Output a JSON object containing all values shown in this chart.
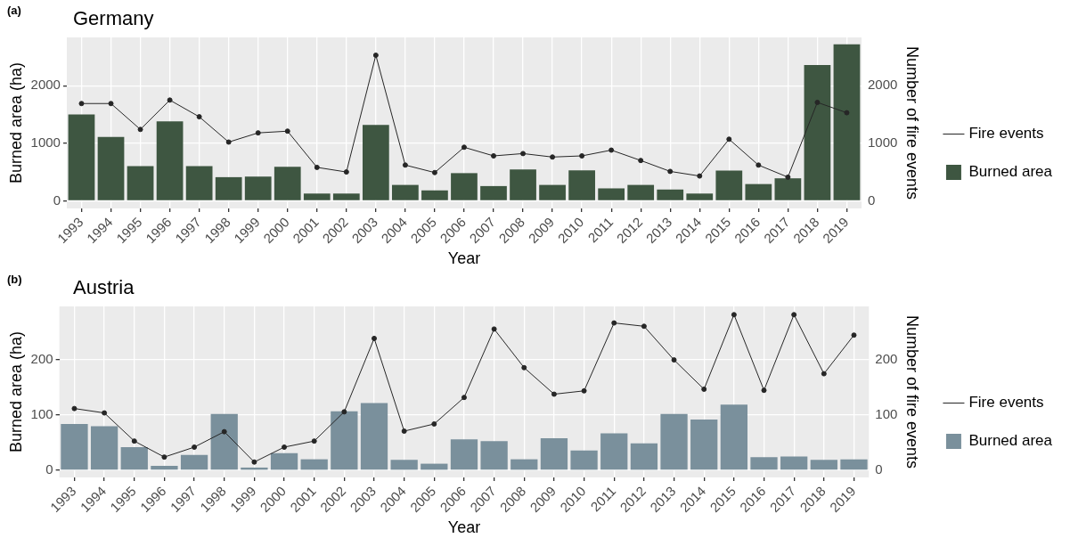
{
  "chart_data": [
    {
      "type": "bar",
      "title": "Germany",
      "annotations": [
        "(a)"
      ],
      "xlabel": "Year",
      "ylabel": "Burned area (ha)",
      "y2label": "Number of fire events",
      "categories": [
        "1993",
        "1994",
        "1995",
        "1996",
        "1997",
        "1998",
        "1999",
        "2000",
        "2001",
        "2002",
        "2003",
        "2004",
        "2005",
        "2006",
        "2007",
        "2008",
        "2009",
        "2010",
        "2011",
        "2012",
        "2013",
        "2014",
        "2015",
        "2016",
        "2017",
        "2018",
        "2019"
      ],
      "series": [
        {
          "name": "Fire events",
          "type": "line",
          "axis": "y2",
          "color": "#262626",
          "values": [
            1690,
            1690,
            1240,
            1750,
            1460,
            1020,
            1180,
            1210,
            580,
            500,
            2530,
            620,
            490,
            930,
            780,
            820,
            760,
            780,
            880,
            700,
            510,
            430,
            1070,
            620,
            410,
            1710,
            1530
          ]
        },
        {
          "name": "Burned area",
          "color": "#3e5641",
          "values": [
            1500,
            1110,
            600,
            1380,
            600,
            410,
            420,
            590,
            125,
            125,
            1320,
            275,
            180,
            480,
            255,
            545,
            275,
            530,
            215,
            275,
            195,
            125,
            525,
            290,
            390,
            2360,
            2720
          ]
        }
      ],
      "ylim": [
        -135,
        2840
      ],
      "yticks": [
        0,
        1000,
        2000
      ],
      "y2lim": [
        -135,
        2840
      ],
      "y2ticks": [
        0,
        1000,
        2000
      ],
      "grid": true,
      "legend": "right",
      "marker": "circle",
      "line_style": "solid"
    },
    {
      "type": "bar",
      "title": "Austria",
      "annotations": [
        "(b)"
      ],
      "xlabel": "Year",
      "ylabel": "Burned area (ha)",
      "y2label": "Number of fire events",
      "categories": [
        "1993",
        "1994",
        "1995",
        "1996",
        "1997",
        "1998",
        "1999",
        "2000",
        "2001",
        "2002",
        "2003",
        "2004",
        "2005",
        "2006",
        "2007",
        "2008",
        "2009",
        "2010",
        "2011",
        "2012",
        "2013",
        "2014",
        "2015",
        "2016",
        "2017",
        "2018",
        "2019"
      ],
      "series": [
        {
          "name": "Fire events",
          "type": "line",
          "axis": "y2",
          "color": "#262626",
          "values": [
            112,
            104,
            53,
            24,
            42,
            70,
            15,
            42,
            53,
            106,
            239,
            71,
            84,
            132,
            256,
            186,
            138,
            144,
            267,
            261,
            200,
            147,
            282,
            145,
            282,
            175,
            245
          ]
        },
        {
          "name": "Burned area",
          "color": "#7a909c",
          "values": [
            84,
            80,
            42,
            8,
            28,
            102,
            5,
            31,
            20,
            107,
            122,
            19,
            12,
            56,
            53,
            20,
            58,
            36,
            67,
            49,
            102,
            92,
            119,
            24,
            25,
            19,
            20
          ]
        }
      ],
      "ylim": [
        -13,
        297
      ],
      "yticks": [
        0,
        100,
        200
      ],
      "y2lim": [
        -13,
        297
      ],
      "y2ticks": [
        0,
        100,
        200
      ],
      "grid": true,
      "legend": "right",
      "marker": "circle",
      "line_style": "solid"
    }
  ]
}
